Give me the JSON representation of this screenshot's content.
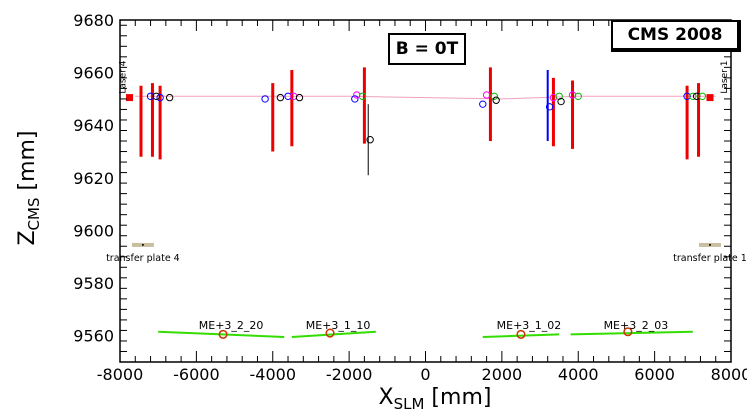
{
  "chart_data": {
    "type": "scatter",
    "title": "",
    "experiment_label": "CMS 2008",
    "field_label": "B = 0T",
    "xlabel": {
      "main": "X",
      "sub": "SLM",
      "unit": " [mm]"
    },
    "ylabel": {
      "main": "Z",
      "sub": "CMS",
      "unit": " [mm]"
    },
    "xlim": [
      -8000,
      8000
    ],
    "ylim": [
      9550,
      9680
    ],
    "x_ticks": [
      -8000,
      -6000,
      -4000,
      -2000,
      0,
      2000,
      4000,
      6000,
      8000
    ],
    "x_tick_labels": [
      "-8000",
      "-6000",
      "-4000",
      "-2000",
      "0",
      "2000",
      "4000",
      "6000",
      "8000"
    ],
    "y_ticks": [
      9560,
      9580,
      9600,
      9620,
      9640,
      9660,
      9680
    ],
    "y_tick_labels": [
      "9560",
      "9580",
      "9600",
      "9620",
      "9640",
      "9660",
      "9680"
    ],
    "laser_beam": {
      "points": [
        [
          -7600,
          9651
        ],
        [
          -4000,
          9651
        ],
        [
          -2000,
          9651
        ],
        [
          0,
          9650.5
        ],
        [
          2000,
          9650
        ],
        [
          4000,
          9651
        ],
        [
          6000,
          9651
        ],
        [
          7600,
          9651
        ]
      ],
      "color": "#f0a0c0"
    },
    "laser_sources": [
      {
        "label": "Laser 4",
        "x": -7750,
        "z": 9650.5
      },
      {
        "label": "Laser 1",
        "x": 7450,
        "z": 9650.5
      }
    ],
    "red_bars": [
      {
        "x": -7450,
        "z1": 9628,
        "z2": 9655
      },
      {
        "x": -7150,
        "z1": 9628,
        "z2": 9656
      },
      {
        "x": -6950,
        "z1": 9627,
        "z2": 9655
      },
      {
        "x": -4000,
        "z1": 9630,
        "z2": 9656
      },
      {
        "x": -3500,
        "z1": 9632,
        "z2": 9661
      },
      {
        "x": -1600,
        "z1": 9633,
        "z2": 9662
      },
      {
        "x": 1700,
        "z1": 9634,
        "z2": 9662
      },
      {
        "x": 3350,
        "z1": 9632,
        "z2": 9658
      },
      {
        "x": 3850,
        "z1": 9631,
        "z2": 9657
      },
      {
        "x": 6850,
        "z1": 9627,
        "z2": 9655
      },
      {
        "x": 7150,
        "z1": 9628,
        "z2": 9656
      }
    ],
    "blue_bars": [
      {
        "x": 3200,
        "z1": 9634,
        "z2": 9661
      }
    ],
    "black_bars": [
      {
        "x": -1500,
        "z1": 9621,
        "z2": 9648
      }
    ],
    "markers": [
      {
        "x": -7200,
        "z": 9651,
        "color": "#0000ff"
      },
      {
        "x": -7050,
        "z": 9651,
        "color": "#000000"
      },
      {
        "x": -6950,
        "z": 9650.5,
        "color": "#0000ff"
      },
      {
        "x": -6700,
        "z": 9650.5,
        "color": "#000000"
      },
      {
        "x": -4200,
        "z": 9650,
        "color": "#0000ff"
      },
      {
        "x": -3800,
        "z": 9650.5,
        "color": "#000000"
      },
      {
        "x": -3600,
        "z": 9651,
        "color": "#0000ff"
      },
      {
        "x": -3450,
        "z": 9651,
        "color": "#ff00ff"
      },
      {
        "x": -3300,
        "z": 9650.5,
        "color": "#000000"
      },
      {
        "x": -1850,
        "z": 9650,
        "color": "#0000ff"
      },
      {
        "x": -1800,
        "z": 9651.5,
        "color": "#ff00ff"
      },
      {
        "x": -1650,
        "z": 9651,
        "color": "#00c000"
      },
      {
        "x": -1450,
        "z": 9634.5,
        "color": "#000000"
      },
      {
        "x": 1500,
        "z": 9648,
        "color": "#0000ff"
      },
      {
        "x": 1600,
        "z": 9651.5,
        "color": "#ff00ff"
      },
      {
        "x": 1800,
        "z": 9651,
        "color": "#00c000"
      },
      {
        "x": 1850,
        "z": 9649.5,
        "color": "#000000"
      },
      {
        "x": 3250,
        "z": 9647,
        "color": "#0000ff"
      },
      {
        "x": 3350,
        "z": 9650.5,
        "color": "#ff00ff"
      },
      {
        "x": 3500,
        "z": 9651,
        "color": "#00c000"
      },
      {
        "x": 3550,
        "z": 9649,
        "color": "#000000"
      },
      {
        "x": 3850,
        "z": 9651.5,
        "color": "#ff00ff"
      },
      {
        "x": 4000,
        "z": 9651,
        "color": "#00c000"
      },
      {
        "x": 6850,
        "z": 9651,
        "color": "#0000ff"
      },
      {
        "x": 7000,
        "z": 9651,
        "color": "#00c000"
      },
      {
        "x": 7100,
        "z": 9651,
        "color": "#000000"
      },
      {
        "x": 7250,
        "z": 9651,
        "color": "#00c000"
      }
    ],
    "transfer_plates": [
      {
        "label": "transfer plate 4",
        "x": -7400,
        "z": 9594.5
      },
      {
        "label": "transfer plate 1",
        "x": 7450,
        "z": 9594.5
      }
    ],
    "chambers": [
      {
        "label": "ME+3_2_20",
        "x": -5300,
        "z": 9560.5,
        "segment": [
          [
            -7000,
            9561.5
          ],
          [
            -3700,
            9559.5
          ]
        ]
      },
      {
        "label": "ME+3_1_10",
        "x": -2500,
        "z": 9561,
        "segment": [
          [
            -3500,
            9559.5
          ],
          [
            -1300,
            9561.5
          ]
        ]
      },
      {
        "label": "ME+3_1_02",
        "x": 2500,
        "z": 9560.5,
        "segment": [
          [
            1500,
            9559.5
          ],
          [
            3500,
            9560.5
          ]
        ]
      },
      {
        "label": "ME+3_2_03",
        "x": 5300,
        "z": 9561.5,
        "segment": [
          [
            3800,
            9560.5
          ],
          [
            7000,
            9561.5
          ]
        ]
      }
    ],
    "colors": {
      "red": "#ee0000",
      "blue": "#0000ff",
      "magenta": "#ff00ff",
      "green": "#00c000",
      "black": "#000000",
      "chamber_line": "#33dd00",
      "chamber_marker": "#cc3300",
      "plate": "#c8bfa0"
    }
  }
}
